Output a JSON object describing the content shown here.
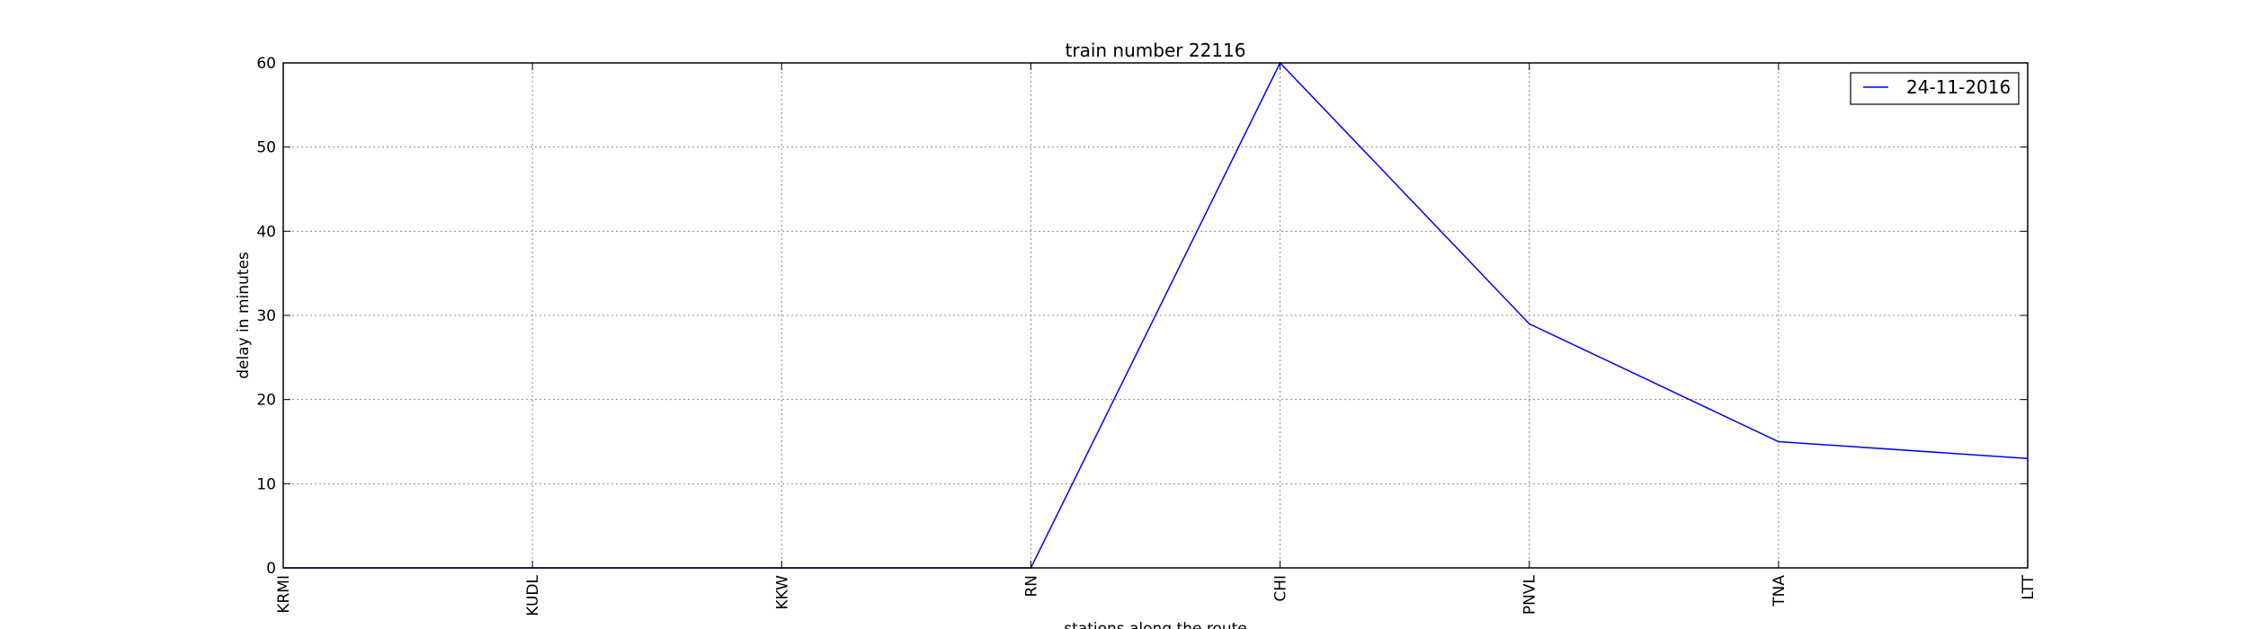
{
  "chart_data": {
    "type": "line",
    "title": "train number 22116",
    "xlabel": "stations along the route",
    "ylabel": "delay in minutes",
    "categories": [
      "KRMI",
      "KUDL",
      "KKW",
      "RN",
      "CHI",
      "PNVL",
      "TNA",
      "LTT"
    ],
    "series": [
      {
        "name": "24-11-2016",
        "values": [
          0,
          0,
          0,
          0,
          60,
          29,
          15,
          13
        ],
        "color": "#0000ff"
      }
    ],
    "ylim": [
      0,
      60
    ],
    "yticks": [
      "0",
      "10",
      "20",
      "30",
      "40",
      "50",
      "60"
    ],
    "grid": true,
    "legend_position": "top-right"
  }
}
